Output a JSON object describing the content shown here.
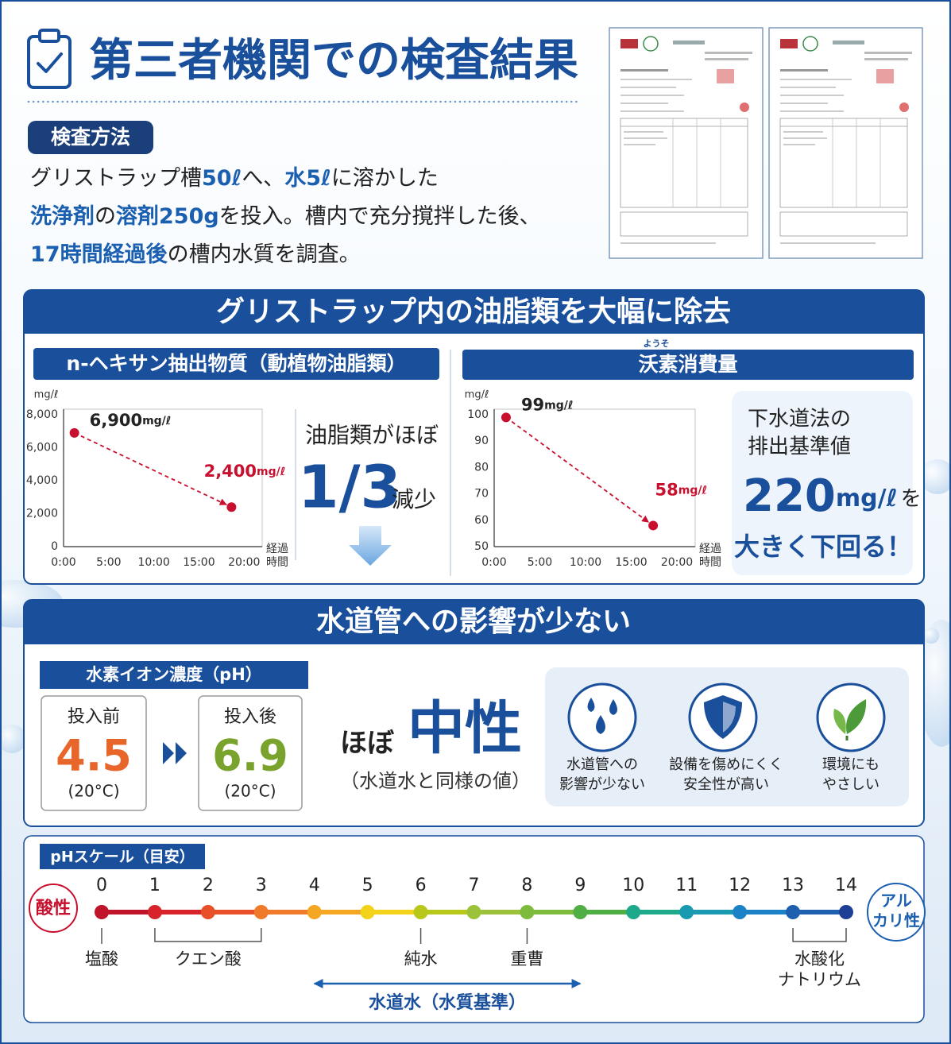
{
  "header": {
    "title": "第三者機関での検査結果"
  },
  "method": {
    "label": "検査方法",
    "lines": [
      [
        {
          "text": "グリストラップ槽"
        },
        {
          "text": "50ℓ",
          "em": true
        },
        {
          "text": "へ、"
        },
        {
          "text": "水5ℓ",
          "em": true
        },
        {
          "text": "に溶かした"
        }
      ],
      [
        {
          "text": "洗浄剤",
          "em": true
        },
        {
          "text": "の"
        },
        {
          "text": "溶剤250g",
          "em": true
        },
        {
          "text": "を投入。槽内で充分撹拌した後、"
        }
      ],
      [
        {
          "text": "17時間経過後",
          "em": true
        },
        {
          "text": "の槽内水質を調査。"
        }
      ]
    ]
  },
  "section1": {
    "title": "グリストラップ内の油脂類を大幅に除去",
    "summary": {
      "line1": "油脂類がほぼ",
      "ratio": "1/3",
      "suffix": "減少"
    },
    "standard": {
      "lines": [
        "下水道法の",
        "排出基準値"
      ],
      "value": "220",
      "unit": "mg/ℓ",
      "particle": "を",
      "conclusion": "大きく下回る！"
    }
  },
  "chart_data": [
    {
      "type": "line",
      "title": "n-ヘキサン抽出物質（動植物油脂類）",
      "y_label": "mg/ℓ",
      "x_label": [
        "経過",
        "時間"
      ],
      "x": [
        1.2,
        18.6
      ],
      "xlim": [
        0,
        22
      ],
      "xticks": [
        {
          "value": 0,
          "label": "0:00"
        },
        {
          "value": 5,
          "label": "5:00"
        },
        {
          "value": 10,
          "label": "10:00"
        },
        {
          "value": 15,
          "label": "15:00"
        },
        {
          "value": 20,
          "label": "20:00"
        }
      ],
      "ylim": [
        0,
        8000
      ],
      "yticks": [
        0,
        {
          "value": 2000,
          "label": "2,000"
        },
        {
          "value": 4000,
          "label": "4,000"
        },
        {
          "value": 6000,
          "label": "6,000"
        },
        {
          "value": 8000,
          "label": "8,000"
        }
      ],
      "series": [
        {
          "color": "#c8102e",
          "values": [
            6900,
            2400
          ],
          "value_labels": [
            "6,900",
            "2,400"
          ]
        }
      ],
      "value_label_unit": "mg/ℓ"
    },
    {
      "type": "line",
      "title": "沃素消費量",
      "title_ruby": "ようそ",
      "y_label": "mg/ℓ",
      "x_label": [
        "経過",
        "時間"
      ],
      "x": [
        1.3,
        17.4
      ],
      "xlim": [
        0,
        22
      ],
      "xticks": [
        {
          "value": 0,
          "label": "0:00"
        },
        {
          "value": 5,
          "label": "5:00"
        },
        {
          "value": 10,
          "label": "10:00"
        },
        {
          "value": 15,
          "label": "15:00"
        },
        {
          "value": 20,
          "label": "20:00"
        }
      ],
      "ylim": [
        50,
        100
      ],
      "yticks": [
        50,
        60,
        70,
        80,
        90,
        100
      ],
      "series": [
        {
          "color": "#c8102e",
          "values": [
            99,
            58
          ],
          "value_labels": [
            "99",
            "58"
          ]
        }
      ],
      "value_label_unit": "mg/ℓ"
    }
  ],
  "section2": {
    "title": "水道管への影響が少ない",
    "ph_label": "水素イオン濃度（pH）",
    "before": {
      "label": "投入前",
      "value": 4.5,
      "temp": "(20°C)"
    },
    "after": {
      "label": "投入後",
      "value": 6.9,
      "temp": "(20°C)"
    },
    "verdict": {
      "prefix": "ほぼ",
      "word": "中性",
      "note": "（水道水と同様の値）"
    },
    "features": [
      {
        "lines": [
          "水道管への",
          "影響が少ない"
        ]
      },
      {
        "lines": [
          "設備を傷めにくく",
          "安全性が高い"
        ]
      },
      {
        "lines": [
          "環境にも",
          "やさしい"
        ]
      }
    ]
  },
  "ph_scale": {
    "label": "pHスケール（目安）",
    "acid": "酸性",
    "alkali": [
      "アル",
      "カリ性"
    ],
    "ticks": [
      0,
      1,
      2,
      3,
      4,
      5,
      6,
      7,
      8,
      9,
      10,
      11,
      12,
      13,
      14
    ],
    "colors": [
      "#c0142a",
      "#d8232a",
      "#e8502a",
      "#f07a2a",
      "#f5a623",
      "#f3d21a",
      "#b8c81a",
      "#9cc23a",
      "#7dbb3c",
      "#4fae44",
      "#1ea98a",
      "#1a9ab0",
      "#1b82c8",
      "#1e5fb0",
      "#1e3f96"
    ],
    "markers": [
      {
        "label": [
          "塩酸"
        ],
        "from": 0,
        "to": 0
      },
      {
        "label": [
          "クエン酸"
        ],
        "from": 1,
        "to": 3
      },
      {
        "label": [
          "純水"
        ],
        "from": 6,
        "to": 6
      },
      {
        "label": [
          "重曹"
        ],
        "from": 8,
        "to": 8
      },
      {
        "label": [
          "水酸化",
          "ナトリウム"
        ],
        "from": 13,
        "to": 14
      }
    ],
    "range": {
      "label": "水道水（水質基準）",
      "from": 4,
      "to": 9
    }
  }
}
